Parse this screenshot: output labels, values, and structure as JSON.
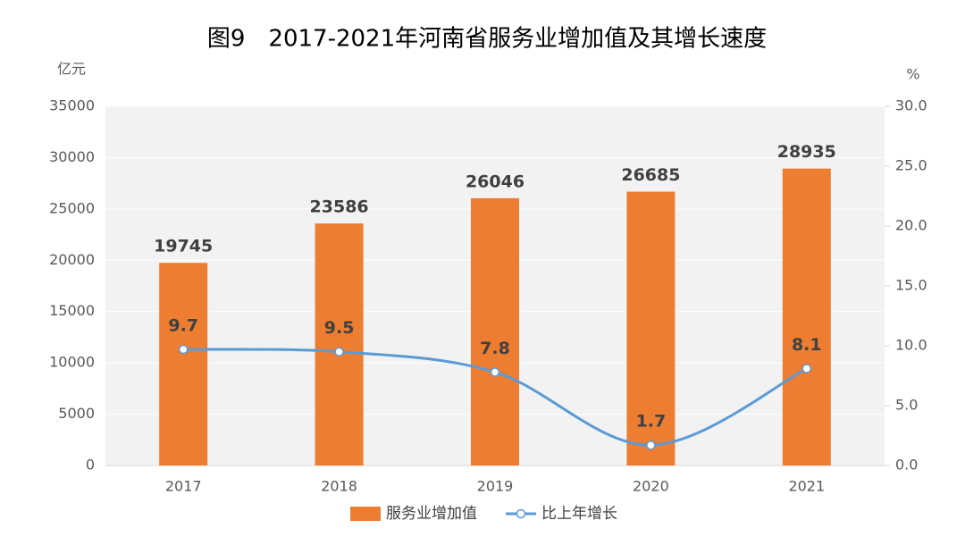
{
  "chart_data": {
    "type": "combo",
    "title": "图9　2017-2021年河南省服务业增加值及其增长速度",
    "y_label": "亿元",
    "y2_label": "%",
    "categories": [
      "2017",
      "2018",
      "2019",
      "2020",
      "2021"
    ],
    "series": [
      {
        "name": "服务业增加值",
        "type": "bar",
        "color": "#ed7d31",
        "values": [
          19745,
          23586,
          26046,
          26685,
          28935
        ]
      },
      {
        "name": "比上年增长",
        "type": "line",
        "axis": "y2",
        "color": "#5b9bd5",
        "values": [
          9.7,
          9.5,
          7.8,
          1.7,
          8.1
        ]
      }
    ],
    "ylim": [
      0,
      35000
    ],
    "yticks": [
      0,
      5000,
      10000,
      15000,
      20000,
      25000,
      30000,
      35000
    ],
    "y2lim": [
      0,
      30
    ],
    "y2ticks": [
      {
        "value": 0,
        "label": "0.0"
      },
      {
        "value": 5,
        "label": "5.0"
      },
      {
        "value": 10,
        "label": "10.0"
      },
      {
        "value": 15,
        "label": "15.0"
      },
      {
        "value": 20,
        "label": "20.0"
      },
      {
        "value": 25,
        "label": "25.0"
      },
      {
        "value": 30,
        "label": "30.0"
      }
    ],
    "grid": true,
    "legend": "bottom"
  }
}
